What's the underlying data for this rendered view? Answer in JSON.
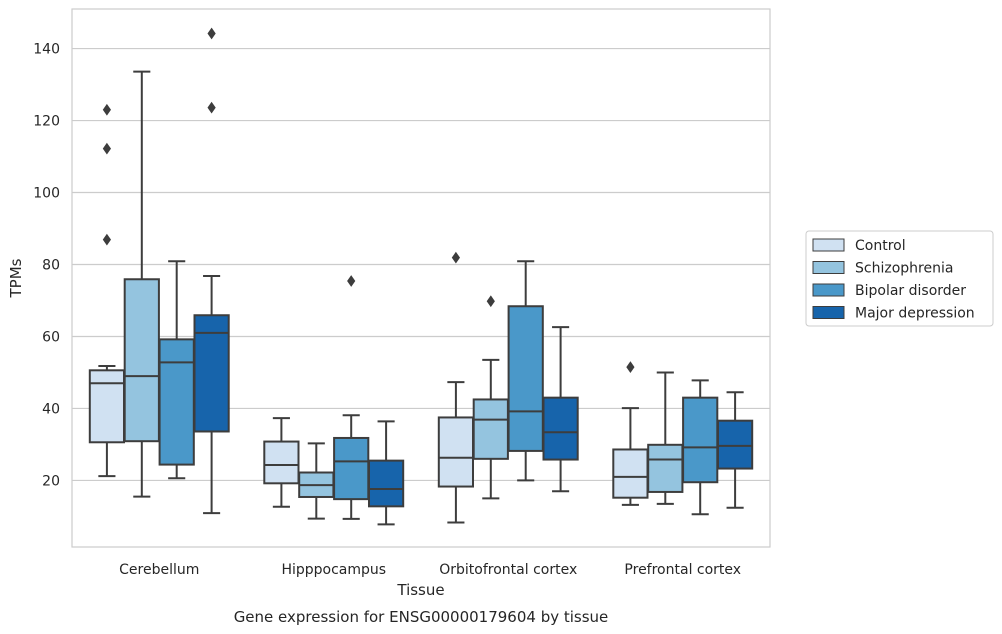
{
  "chart_data": {
    "type": "box",
    "title": "",
    "caption": "Gene expression for ENSG00000179604 by tissue",
    "xlabel": "Tissue",
    "ylabel": "TPMs",
    "ylim": [
      1.5,
      151
    ],
    "yticks": [
      20,
      40,
      60,
      80,
      100,
      120,
      140
    ],
    "grid": true,
    "legend_position": "right",
    "categories": [
      "Cerebellum",
      "Hipppocampus",
      "Orbitofrontal cortex",
      "Prefrontal cortex"
    ],
    "series": [
      {
        "name": "Control",
        "color": "#d0e1f2",
        "boxes": [
          {
            "whislo": 21.2,
            "q1": 30.6,
            "med": 47.0,
            "q3": 50.6,
            "whishi": 51.8,
            "fliers": [
              123.0,
              112.2,
              86.9
            ]
          },
          {
            "whislo": 12.7,
            "q1": 19.2,
            "med": 24.3,
            "q3": 30.8,
            "whishi": 37.3,
            "fliers": []
          },
          {
            "whislo": 8.3,
            "q1": 18.3,
            "med": 26.3,
            "q3": 37.5,
            "whishi": 47.3,
            "fliers": [
              81.9
            ]
          },
          {
            "whislo": 13.2,
            "q1": 15.2,
            "med": 21.0,
            "q3": 28.6,
            "whishi": 40.1,
            "fliers": [
              51.5
            ]
          }
        ]
      },
      {
        "name": "Schizophrenia",
        "color": "#94c4df",
        "boxes": [
          {
            "whislo": 15.5,
            "q1": 30.9,
            "med": 49.0,
            "q3": 75.9,
            "whishi": 133.6,
            "fliers": []
          },
          {
            "whislo": 9.4,
            "q1": 15.4,
            "med": 18.7,
            "q3": 22.2,
            "whishi": 30.3,
            "fliers": []
          },
          {
            "whislo": 15.0,
            "q1": 26.0,
            "med": 36.9,
            "q3": 42.5,
            "whishi": 53.5,
            "fliers": [
              69.8
            ]
          },
          {
            "whislo": 13.5,
            "q1": 16.8,
            "med": 25.8,
            "q3": 29.9,
            "whishi": 50.0,
            "fliers": []
          }
        ]
      },
      {
        "name": "Bipolar disorder",
        "color": "#4a98c9",
        "boxes": [
          {
            "whislo": 20.6,
            "q1": 24.4,
            "med": 52.8,
            "q3": 59.2,
            "whishi": 80.9,
            "fliers": []
          },
          {
            "whislo": 9.3,
            "q1": 14.8,
            "med": 25.3,
            "q3": 31.8,
            "whishi": 38.1,
            "fliers": [
              75.4
            ]
          },
          {
            "whislo": 20.0,
            "q1": 28.2,
            "med": 39.2,
            "q3": 68.4,
            "whishi": 80.9,
            "fliers": []
          },
          {
            "whislo": 10.6,
            "q1": 19.5,
            "med": 29.2,
            "q3": 43.0,
            "whishi": 47.8,
            "fliers": []
          }
        ]
      },
      {
        "name": "Major depression",
        "color": "#1764ab",
        "boxes": [
          {
            "whislo": 10.9,
            "q1": 33.6,
            "med": 61.0,
            "q3": 65.9,
            "whishi": 76.8,
            "fliers": [
              144.2,
              123.6
            ]
          },
          {
            "whislo": 7.8,
            "q1": 12.8,
            "med": 17.6,
            "q3": 25.5,
            "whishi": 36.4,
            "fliers": []
          },
          {
            "whislo": 17.0,
            "q1": 25.8,
            "med": 33.4,
            "q3": 43.0,
            "whishi": 62.6,
            "fliers": []
          },
          {
            "whislo": 12.4,
            "q1": 23.3,
            "med": 29.6,
            "q3": 36.6,
            "whishi": 44.5,
            "fliers": []
          }
        ]
      }
    ]
  }
}
